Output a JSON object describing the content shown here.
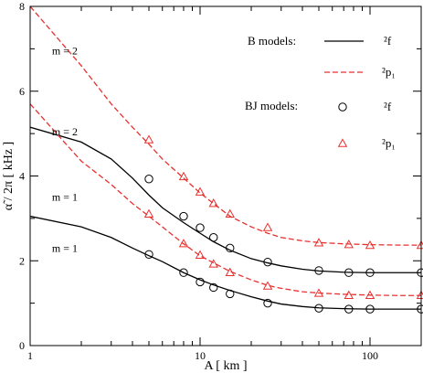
{
  "chart_data": {
    "type": "line",
    "xlabel": "A [ km ]",
    "ylabel": "α̃ / 2π [ kHz ]",
    "xscale": "log",
    "xlim": [
      1,
      200
    ],
    "ylim": [
      0,
      8
    ],
    "x_ticks": [
      1,
      10,
      100
    ],
    "x_tick_labels": [
      "1",
      "10",
      "100"
    ],
    "y_ticks": [
      0,
      2,
      4,
      6,
      8
    ],
    "y_tick_labels": [
      "0",
      "2",
      "4",
      "6",
      "8"
    ],
    "grid": false,
    "legend_position": "top-right",
    "legend": {
      "group_b": "B models:",
      "group_bj": "BJ models:",
      "label_f": "²f",
      "label_p1": "²p₁"
    },
    "series": [
      {
        "model": "B",
        "mode": "2f",
        "m": 2,
        "color": "#000000",
        "style": "solid",
        "x": [
          1,
          2,
          3,
          4,
          5,
          6,
          8,
          10,
          12,
          15,
          20,
          25,
          30,
          40,
          50,
          70,
          100,
          150,
          200
        ],
        "y": [
          5.15,
          4.8,
          4.4,
          3.95,
          3.55,
          3.25,
          2.9,
          2.65,
          2.45,
          2.25,
          2.05,
          1.95,
          1.88,
          1.8,
          1.76,
          1.73,
          1.72,
          1.72,
          1.72
        ]
      },
      {
        "model": "B",
        "mode": "2p1",
        "m": 2,
        "color": "#e8312f",
        "style": "dashed",
        "x": [
          1,
          2,
          3,
          4,
          5,
          6,
          8,
          10,
          12,
          15,
          20,
          25,
          30,
          40,
          50,
          70,
          100,
          150,
          200
        ],
        "y": [
          8.0,
          6.6,
          5.7,
          5.15,
          4.75,
          4.4,
          3.95,
          3.6,
          3.35,
          3.05,
          2.8,
          2.65,
          2.55,
          2.47,
          2.43,
          2.4,
          2.38,
          2.37,
          2.37
        ]
      },
      {
        "model": "B",
        "mode": "2f",
        "m": 1,
        "color": "#000000",
        "style": "solid",
        "x": [
          1,
          2,
          3,
          4,
          5,
          6,
          8,
          10,
          12,
          15,
          20,
          25,
          30,
          40,
          50,
          70,
          100,
          150,
          200
        ],
        "y": [
          3.05,
          2.8,
          2.55,
          2.3,
          2.12,
          1.98,
          1.72,
          1.55,
          1.43,
          1.3,
          1.15,
          1.05,
          0.98,
          0.92,
          0.89,
          0.87,
          0.86,
          0.86,
          0.86
        ]
      },
      {
        "model": "B",
        "mode": "2p1",
        "m": 1,
        "color": "#e8312f",
        "style": "dashed",
        "x": [
          1,
          2,
          3,
          4,
          5,
          6,
          8,
          10,
          12,
          15,
          20,
          25,
          30,
          40,
          50,
          70,
          100,
          150,
          200
        ],
        "y": [
          5.7,
          4.35,
          3.8,
          3.35,
          3.05,
          2.8,
          2.4,
          2.12,
          1.95,
          1.75,
          1.55,
          1.42,
          1.35,
          1.27,
          1.24,
          1.21,
          1.19,
          1.18,
          1.18
        ]
      },
      {
        "model": "BJ",
        "mode": "2f",
        "m": 2,
        "color": "#000000",
        "marker": "circle",
        "x": [
          5,
          8,
          10,
          12,
          15,
          25,
          50,
          75,
          100,
          200
        ],
        "y": [
          3.93,
          3.05,
          2.78,
          2.55,
          2.3,
          1.97,
          1.77,
          1.72,
          1.72,
          1.72
        ]
      },
      {
        "model": "BJ",
        "mode": "2p1",
        "m": 2,
        "color": "#e8312f",
        "marker": "triangle",
        "x": [
          5,
          8,
          10,
          12,
          15,
          25,
          50,
          75,
          100,
          200
        ],
        "y": [
          4.85,
          3.98,
          3.62,
          3.35,
          3.1,
          2.78,
          2.42,
          2.38,
          2.36,
          2.36
        ]
      },
      {
        "model": "BJ",
        "mode": "2f",
        "m": 1,
        "color": "#000000",
        "marker": "circle",
        "x": [
          5,
          8,
          10,
          12,
          15,
          25,
          50,
          75,
          100,
          200
        ],
        "y": [
          2.15,
          1.72,
          1.5,
          1.37,
          1.22,
          1.0,
          0.88,
          0.86,
          0.86,
          0.86
        ]
      },
      {
        "model": "BJ",
        "mode": "2p1",
        "m": 1,
        "color": "#e8312f",
        "marker": "triangle",
        "x": [
          5,
          8,
          10,
          12,
          15,
          25,
          50,
          75,
          100,
          200
        ],
        "y": [
          3.1,
          2.4,
          2.13,
          1.92,
          1.72,
          1.4,
          1.23,
          1.18,
          1.18,
          1.18
        ]
      }
    ],
    "annotations": [
      {
        "text": "m = 2",
        "x": 1.6,
        "y": 6.95
      },
      {
        "text": "m = 2",
        "x": 1.6,
        "y": 5.05
      },
      {
        "text": "m = 1",
        "x": 1.6,
        "y": 3.5
      },
      {
        "text": "m = 1",
        "x": 1.6,
        "y": 2.3
      }
    ]
  }
}
